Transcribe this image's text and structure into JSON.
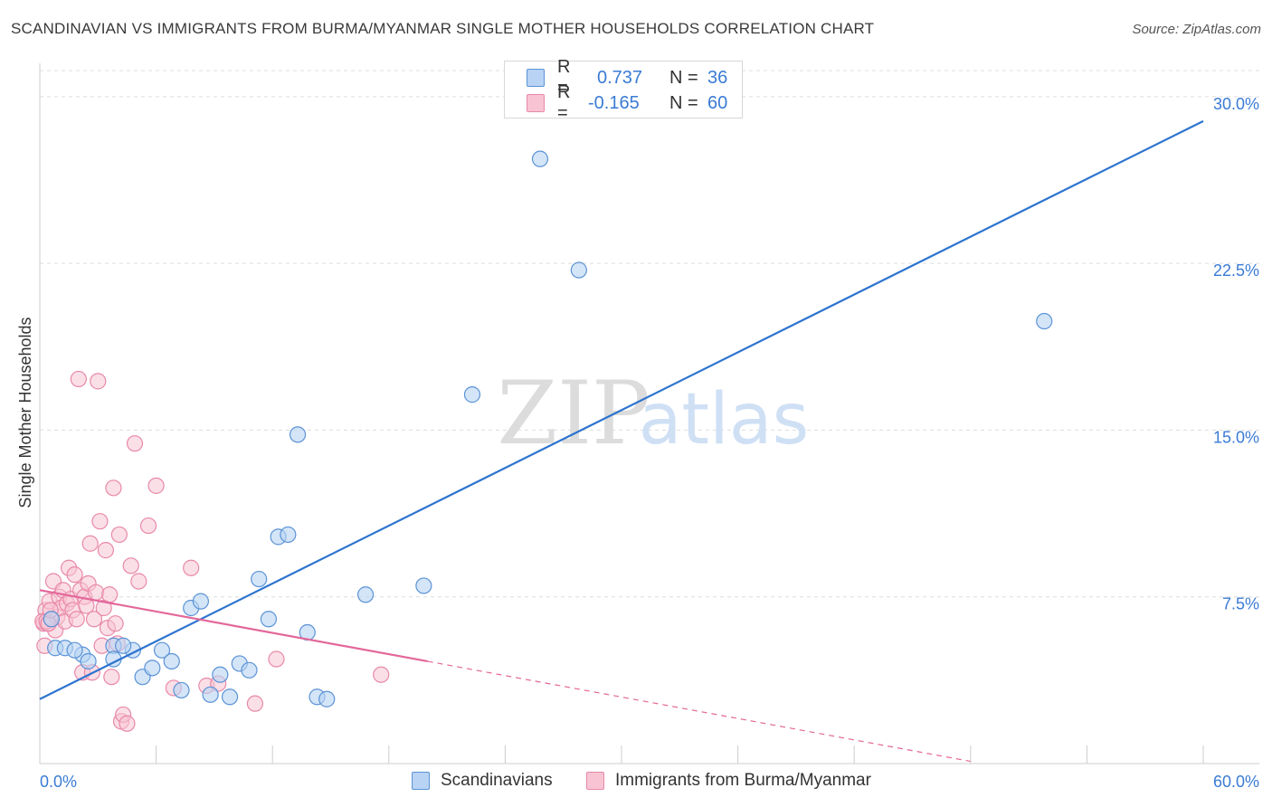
{
  "title": "SCANDINAVIAN VS IMMIGRANTS FROM BURMA/MYANMAR SINGLE MOTHER HOUSEHOLDS CORRELATION CHART",
  "source": "Source: ZipAtlas.com",
  "watermark": {
    "zip": "ZIP",
    "atlas": "atlas"
  },
  "legend": {
    "rows": [
      {
        "r_label": "R =",
        "r_value": "0.737",
        "n_label": "N =",
        "n_value": "36"
      },
      {
        "r_label": "R =",
        "r_value": "-0.165",
        "n_label": "N =",
        "n_value": "60"
      }
    ]
  },
  "colors": {
    "blue_fill": "#b8d3f4",
    "blue_stroke": "#5b93d6",
    "blue_line": "#2d74cf",
    "pink_fill": "#f8c4d4",
    "pink_stroke": "#e889a8",
    "pink_line": "#e3679a",
    "axis_text": "#3a7bd5",
    "grid": "#dddddd"
  },
  "chart_data": {
    "type": "scatter",
    "title": "SCANDINAVIAN VS IMMIGRANTS FROM BURMA/MYANMAR SINGLE MOTHER HOUSEHOLDS CORRELATION CHART",
    "ylabel": "Single Mother Households",
    "xlabel": "",
    "xlim": [
      0,
      60
    ],
    "ylim": [
      0,
      31.5
    ],
    "x_tick_labels": [
      {
        "value": 0,
        "label": "0.0%"
      },
      {
        "value": 60,
        "label": "60.0%"
      }
    ],
    "y_tick_labels": [
      {
        "value": 7.5,
        "label": "7.5%"
      },
      {
        "value": 15,
        "label": "15.0%"
      },
      {
        "value": 22.5,
        "label": "22.5%"
      },
      {
        "value": 30,
        "label": "30.0%"
      }
    ],
    "grid": true,
    "legend_placement": "top-center",
    "series": [
      {
        "name": "Scandinavians",
        "r": 0.737,
        "n": 36,
        "trend": {
          "x": [
            0,
            60
          ],
          "y": [
            2.9,
            28.9
          ],
          "style": "solid"
        },
        "points": [
          [
            0.8,
            5.2
          ],
          [
            1.3,
            5.2
          ],
          [
            2.2,
            4.9
          ],
          [
            3.8,
            5.3
          ],
          [
            2.5,
            4.6
          ],
          [
            3.8,
            4.7
          ],
          [
            4.8,
            5.1
          ],
          [
            5.3,
            3.9
          ],
          [
            5.8,
            4.3
          ],
          [
            6.3,
            5.1
          ],
          [
            6.8,
            4.6
          ],
          [
            7.3,
            3.3
          ],
          [
            7.8,
            7.0
          ],
          [
            8.3,
            7.3
          ],
          [
            8.8,
            3.1
          ],
          [
            9.3,
            4.0
          ],
          [
            9.8,
            3.0
          ],
          [
            10.3,
            4.5
          ],
          [
            10.8,
            4.2
          ],
          [
            11.3,
            8.3
          ],
          [
            11.8,
            6.5
          ],
          [
            12.3,
            10.2
          ],
          [
            12.8,
            10.3
          ],
          [
            13.3,
            14.8
          ],
          [
            13.8,
            5.9
          ],
          [
            14.3,
            3.0
          ],
          [
            14.8,
            2.9
          ],
          [
            16.8,
            7.6
          ],
          [
            19.8,
            8.0
          ],
          [
            22.3,
            16.6
          ],
          [
            25.8,
            27.2
          ],
          [
            27.8,
            22.2
          ],
          [
            51.8,
            19.9
          ],
          [
            1.8,
            5.1
          ],
          [
            4.3,
            5.3
          ],
          [
            0.6,
            6.5
          ]
        ]
      },
      {
        "name": "Immigrants from Burma/Myanmar",
        "r": -0.165,
        "n": 60,
        "trend": {
          "x": [
            0,
            20
          ],
          "y": [
            7.8,
            4.6
          ],
          "style": "solid"
        },
        "trend_extension": {
          "x": [
            20,
            48
          ],
          "y": [
            4.6,
            0.1
          ],
          "style": "dashed"
        },
        "points": [
          [
            0.2,
            6.3
          ],
          [
            0.3,
            6.9
          ],
          [
            0.4,
            6.3
          ],
          [
            0.5,
            7.3
          ],
          [
            0.6,
            6.5
          ],
          [
            0.7,
            8.2
          ],
          [
            0.8,
            6.0
          ],
          [
            0.9,
            6.6
          ],
          [
            1.0,
            7.5
          ],
          [
            1.1,
            7.0
          ],
          [
            1.2,
            7.8
          ],
          [
            1.3,
            6.4
          ],
          [
            1.4,
            7.2
          ],
          [
            1.5,
            8.8
          ],
          [
            1.6,
            7.4
          ],
          [
            1.7,
            6.9
          ],
          [
            1.8,
            8.5
          ],
          [
            1.9,
            6.5
          ],
          [
            2.0,
            17.3
          ],
          [
            2.1,
            7.8
          ],
          [
            2.2,
            4.1
          ],
          [
            2.3,
            7.5
          ],
          [
            2.4,
            7.1
          ],
          [
            2.5,
            8.1
          ],
          [
            2.6,
            9.9
          ],
          [
            2.7,
            4.1
          ],
          [
            2.8,
            6.5
          ],
          [
            2.9,
            7.7
          ],
          [
            3.0,
            17.2
          ],
          [
            3.1,
            10.9
          ],
          [
            3.2,
            5.3
          ],
          [
            3.3,
            7.0
          ],
          [
            3.4,
            9.6
          ],
          [
            3.5,
            6.1
          ],
          [
            3.6,
            7.6
          ],
          [
            3.7,
            3.9
          ],
          [
            3.8,
            12.4
          ],
          [
            3.9,
            6.3
          ],
          [
            4.0,
            5.4
          ],
          [
            4.1,
            10.3
          ],
          [
            4.2,
            1.9
          ],
          [
            4.3,
            2.2
          ],
          [
            4.5,
            1.8
          ],
          [
            4.7,
            8.9
          ],
          [
            4.9,
            14.4
          ],
          [
            5.1,
            8.2
          ],
          [
            5.6,
            10.7
          ],
          [
            6.0,
            12.5
          ],
          [
            6.9,
            3.4
          ],
          [
            7.8,
            8.8
          ],
          [
            8.6,
            3.5
          ],
          [
            9.2,
            3.6
          ],
          [
            11.1,
            2.7
          ],
          [
            12.2,
            4.7
          ],
          [
            17.6,
            4.0
          ],
          [
            0.15,
            6.4
          ],
          [
            0.25,
            5.3
          ],
          [
            0.35,
            6.4
          ],
          [
            0.45,
            6.3
          ],
          [
            0.55,
            6.9
          ]
        ]
      }
    ]
  }
}
